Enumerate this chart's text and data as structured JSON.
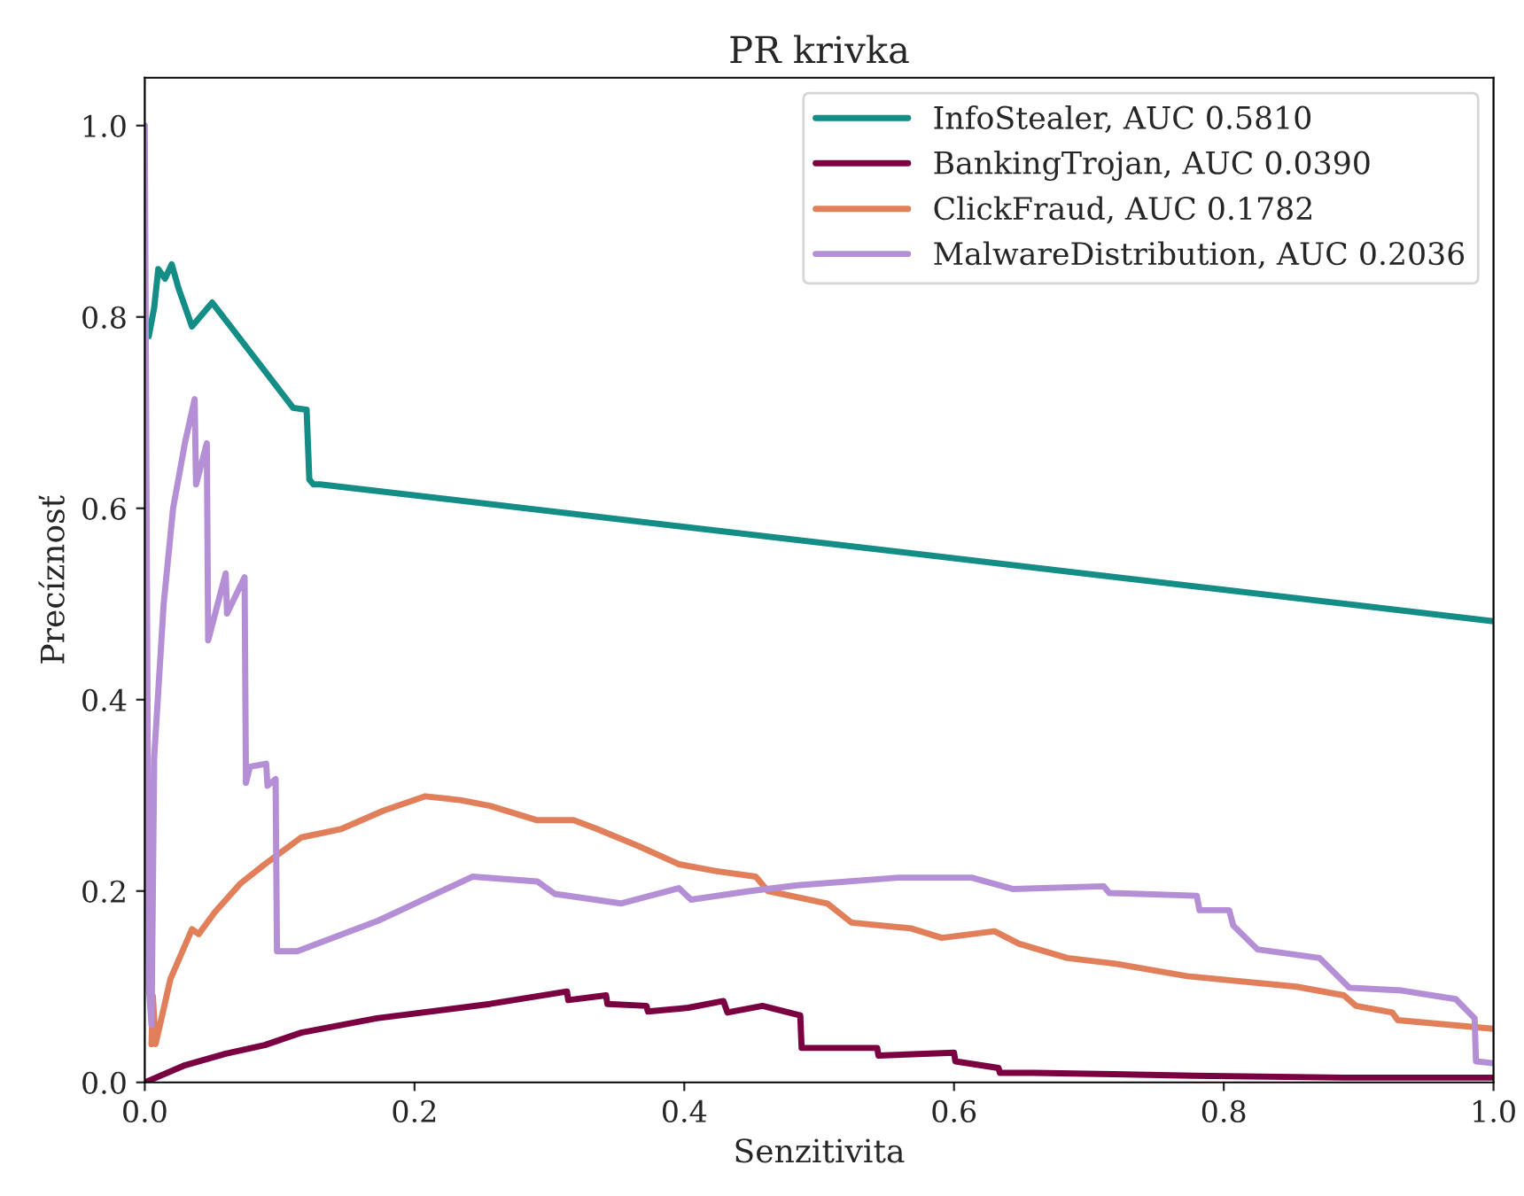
{
  "chart_data": {
    "type": "line",
    "title": "PR krivka",
    "xlabel": "Senzitivita",
    "ylabel": "Precíznosť",
    "xlim": [
      0,
      1
    ],
    "ylim": [
      0,
      1.05
    ],
    "xticks": [
      {
        "value": 0,
        "label": "0.0"
      },
      {
        "value": 0.2,
        "label": "0.2"
      },
      {
        "value": 0.4,
        "label": "0.4"
      },
      {
        "value": 0.6,
        "label": "0.6"
      },
      {
        "value": 0.8,
        "label": "0.8"
      },
      {
        "value": 1,
        "label": "1.0"
      }
    ],
    "yticks": [
      {
        "value": 0,
        "label": "0.0"
      },
      {
        "value": 0.2,
        "label": "0.2"
      },
      {
        "value": 0.4,
        "label": "0.4"
      },
      {
        "value": 0.6,
        "label": "0.6"
      },
      {
        "value": 0.8,
        "label": "0.8"
      },
      {
        "value": 1,
        "label": "1.0"
      }
    ],
    "grid": false,
    "legend": "top right",
    "marker": "none",
    "line_style": "solid",
    "series": [
      {
        "name": "InfoStealer, AUC 0.5810",
        "color": "#138d86",
        "x": [
          0.003,
          0.007,
          0.01,
          0.015,
          0.02,
          0.025,
          0.03,
          0.035,
          0.05,
          0.11,
          0.12,
          0.122,
          0.125,
          0.13,
          1.0
        ],
        "values": [
          0.78,
          0.81,
          0.85,
          0.84,
          0.855,
          0.83,
          0.81,
          0.79,
          0.815,
          0.705,
          0.703,
          0.63,
          0.625,
          0.625,
          0.482
        ]
      },
      {
        "name": "BankingTrojan, AUC 0.0390",
        "color": "#7b0041",
        "x": [
          0.0,
          0.03,
          0.06,
          0.089,
          0.116,
          0.172,
          0.256,
          0.313,
          0.314,
          0.342,
          0.343,
          0.372,
          0.373,
          0.403,
          0.429,
          0.432,
          0.458,
          0.486,
          0.487,
          0.543,
          0.544,
          0.6,
          0.601,
          0.633,
          0.634,
          0.659,
          0.778,
          0.889,
          1.0
        ],
        "values": [
          0.0,
          0.018,
          0.03,
          0.039,
          0.052,
          0.067,
          0.082,
          0.095,
          0.086,
          0.091,
          0.082,
          0.08,
          0.074,
          0.078,
          0.085,
          0.073,
          0.08,
          0.07,
          0.036,
          0.036,
          0.028,
          0.031,
          0.022,
          0.015,
          0.01,
          0.01,
          0.007,
          0.005,
          0.005
        ]
      },
      {
        "name": "ClickFraud, AUC 0.1782",
        "color": "#e17f5b",
        "x": [
          0.005,
          0.006,
          0.008,
          0.019,
          0.035,
          0.04,
          0.052,
          0.071,
          0.089,
          0.116,
          0.146,
          0.177,
          0.208,
          0.234,
          0.256,
          0.291,
          0.318,
          0.335,
          0.366,
          0.396,
          0.423,
          0.453,
          0.462,
          0.506,
          0.524,
          0.568,
          0.591,
          0.63,
          0.648,
          0.684,
          0.72,
          0.773,
          0.854,
          0.889,
          0.898,
          0.925,
          0.929,
          1.0
        ],
        "values": [
          0.04,
          0.09,
          0.04,
          0.108,
          0.16,
          0.155,
          0.178,
          0.208,
          0.228,
          0.256,
          0.265,
          0.284,
          0.299,
          0.295,
          0.289,
          0.274,
          0.274,
          0.265,
          0.247,
          0.228,
          0.221,
          0.215,
          0.2,
          0.187,
          0.167,
          0.161,
          0.151,
          0.158,
          0.145,
          0.13,
          0.124,
          0.111,
          0.1,
          0.091,
          0.08,
          0.073,
          0.065,
          0.056
        ]
      },
      {
        "name": "MalwareDistribution, AUC 0.2036",
        "color": "#b48fd5",
        "x": [
          0.0,
          0.003,
          0.005,
          0.007,
          0.014,
          0.021,
          0.03,
          0.037,
          0.038,
          0.046,
          0.047,
          0.06,
          0.061,
          0.074,
          0.075,
          0.078,
          0.09,
          0.091,
          0.097,
          0.098,
          0.113,
          0.173,
          0.243,
          0.291,
          0.304,
          0.353,
          0.396,
          0.405,
          0.449,
          0.484,
          0.559,
          0.613,
          0.644,
          0.711,
          0.715,
          0.78,
          0.782,
          0.804,
          0.807,
          0.825,
          0.871,
          0.893,
          0.932,
          0.972,
          0.986,
          0.987,
          1.0
        ],
        "values": [
          1.0,
          0.1,
          0.06,
          0.34,
          0.5,
          0.6,
          0.67,
          0.714,
          0.625,
          0.668,
          0.462,
          0.532,
          0.49,
          0.528,
          0.313,
          0.33,
          0.333,
          0.31,
          0.317,
          0.137,
          0.137,
          0.169,
          0.215,
          0.21,
          0.197,
          0.187,
          0.203,
          0.191,
          0.2,
          0.206,
          0.214,
          0.214,
          0.202,
          0.205,
          0.198,
          0.195,
          0.18,
          0.18,
          0.164,
          0.139,
          0.13,
          0.099,
          0.096,
          0.087,
          0.067,
          0.022,
          0.02
        ]
      }
    ]
  }
}
